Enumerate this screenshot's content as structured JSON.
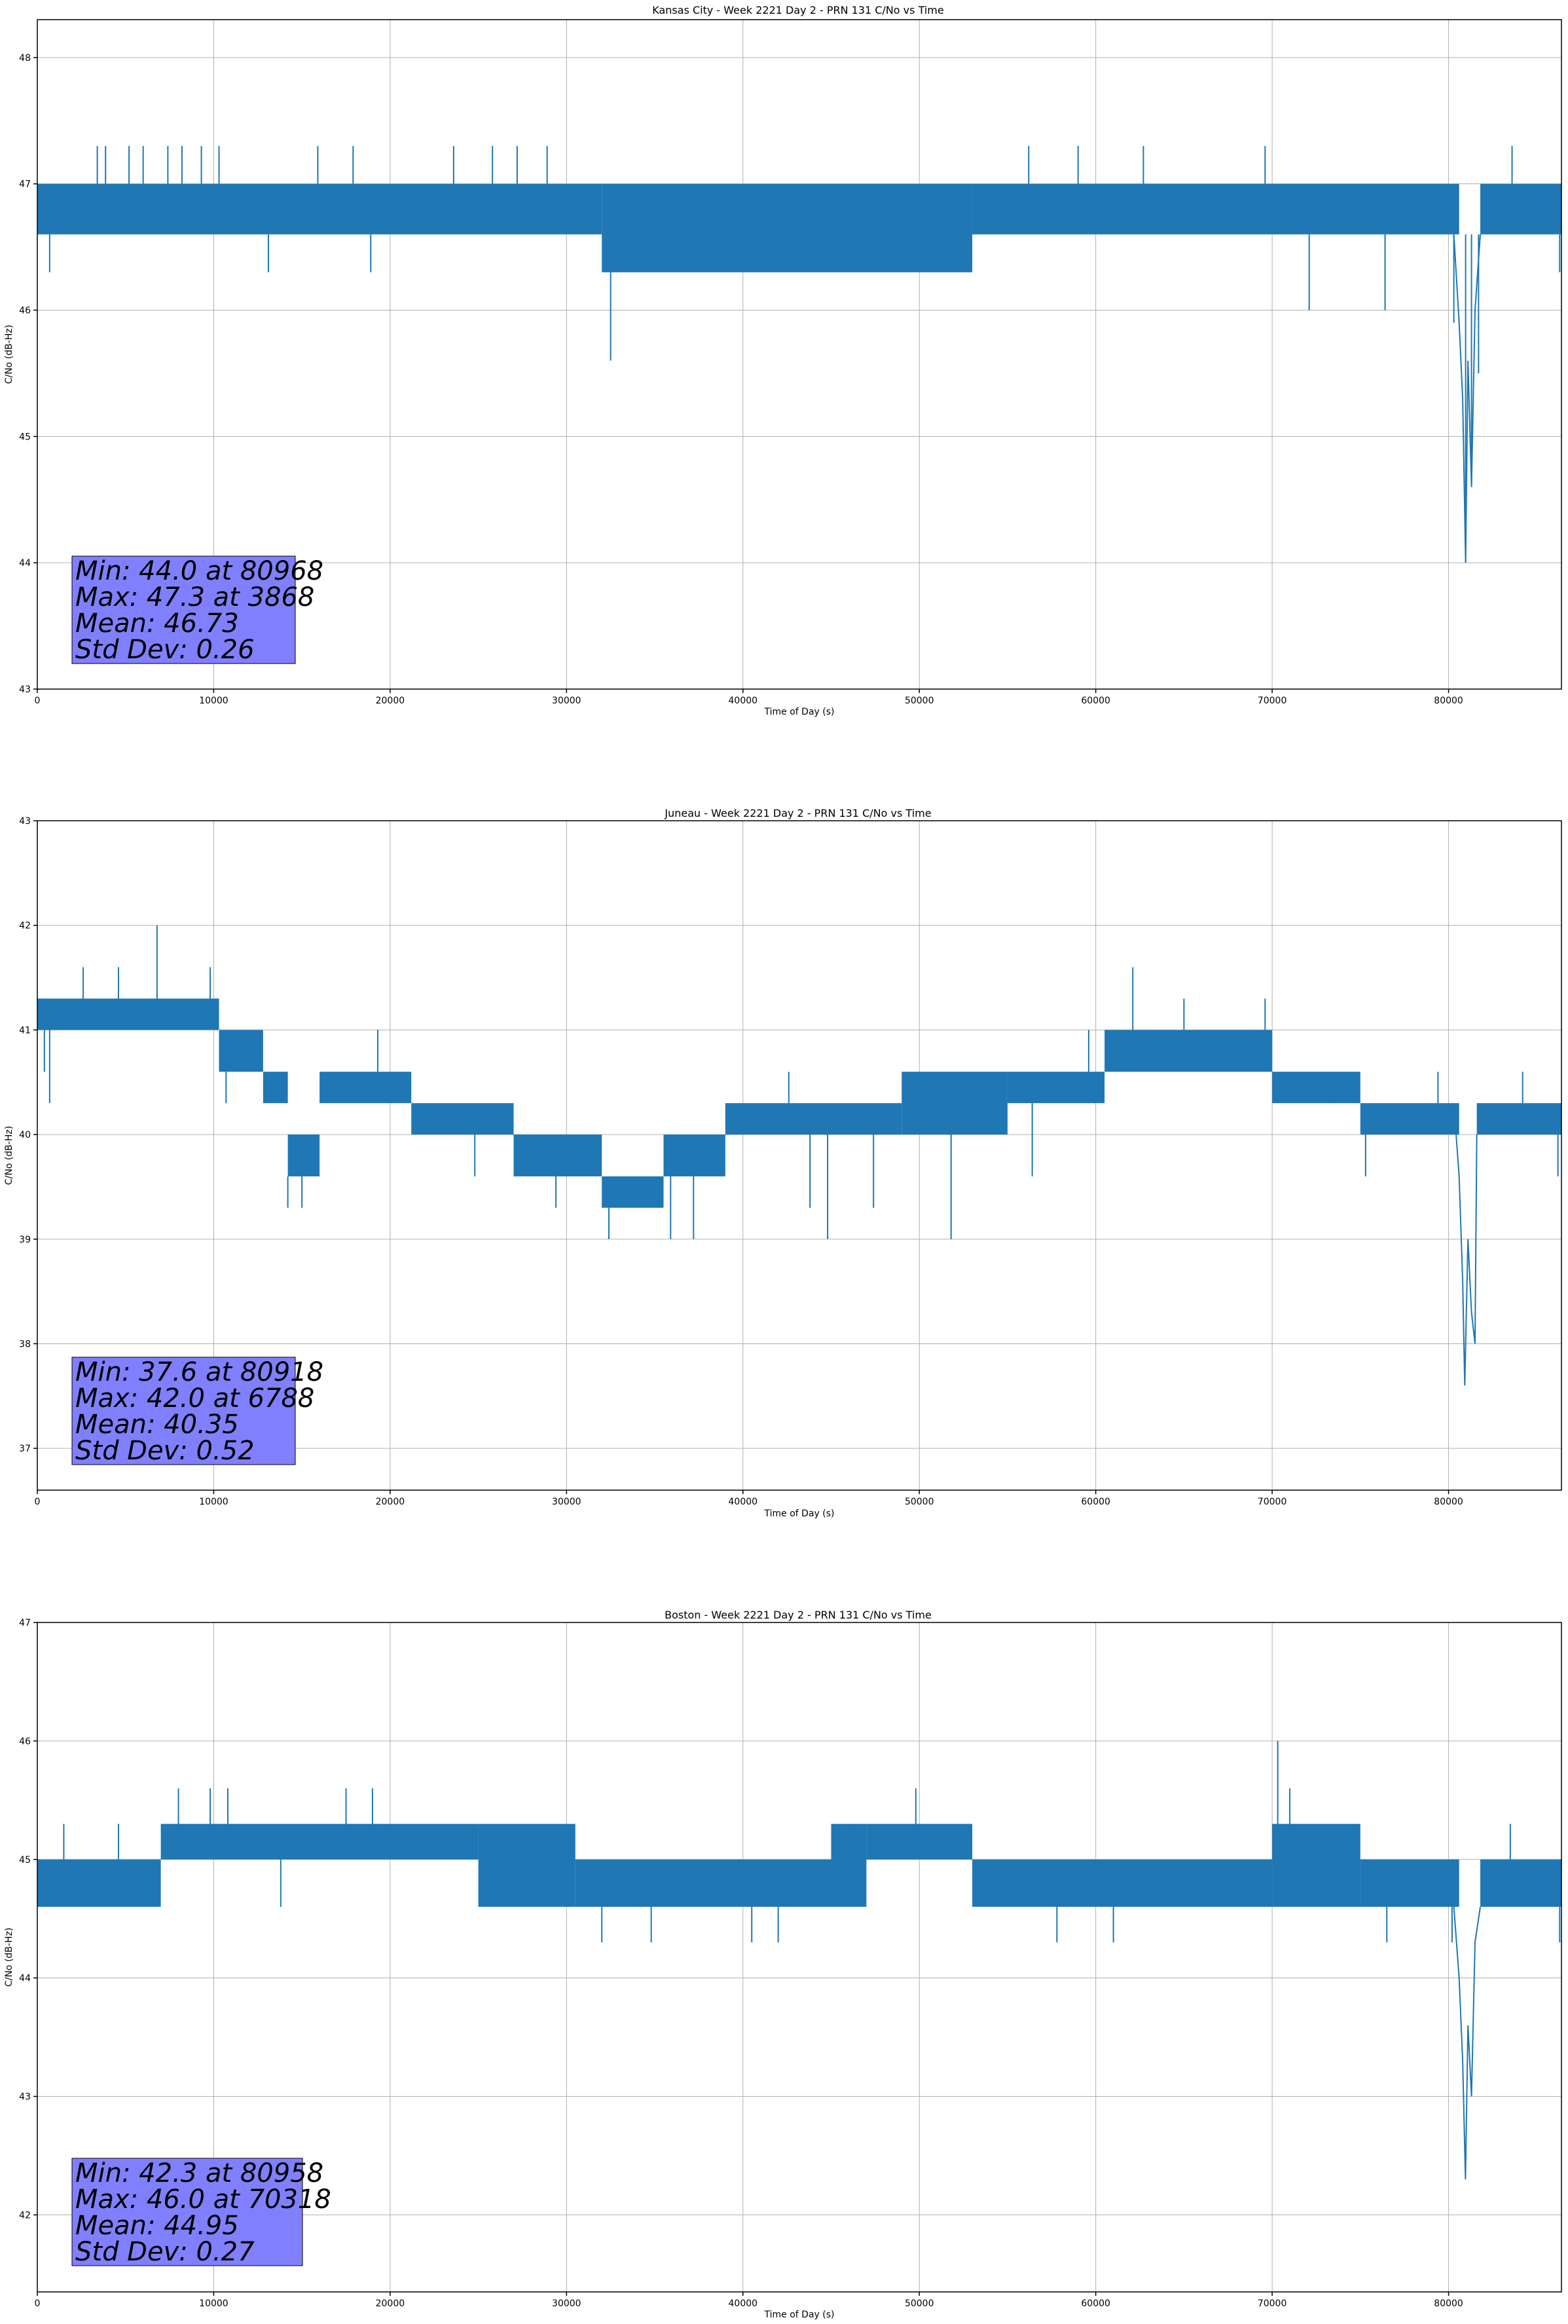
{
  "chart_data": [
    {
      "type": "line",
      "title": "Kansas City - Week 2221 Day 2 - PRN 131 C/No vs Time",
      "xlabel": "Time of Day (s)",
      "ylabel": "C/No (dB-Hz)",
      "xlim": [
        0,
        86400
      ],
      "ylim": [
        43,
        48.3
      ],
      "xticks": [
        0,
        10000,
        20000,
        30000,
        40000,
        50000,
        60000,
        70000,
        80000
      ],
      "yticks": [
        43,
        44,
        45,
        46,
        47,
        48
      ],
      "grid": true,
      "line_color": "#1f77b4",
      "band_segments": [
        {
          "x": [
            0,
            32000
          ],
          "low": 46.6,
          "high": 47.0
        },
        {
          "x": [
            32000,
            53000
          ],
          "low": 46.3,
          "high": 47.0
        },
        {
          "x": [
            53000,
            80600
          ],
          "low": 46.6,
          "high": 47.0
        },
        {
          "x": [
            81800,
            86400
          ],
          "low": 46.6,
          "high": 47.0
        }
      ],
      "spikes": [
        {
          "x": 700,
          "y": 46.3
        },
        {
          "x": 3400,
          "y": 47.3
        },
        {
          "x": 3868,
          "y": 47.3
        },
        {
          "x": 5200,
          "y": 47.3
        },
        {
          "x": 6000,
          "y": 47.3
        },
        {
          "x": 7400,
          "y": 47.3
        },
        {
          "x": 8200,
          "y": 47.3
        },
        {
          "x": 9300,
          "y": 47.3
        },
        {
          "x": 10300,
          "y": 47.3
        },
        {
          "x": 13100,
          "y": 46.3
        },
        {
          "x": 15900,
          "y": 47.3
        },
        {
          "x": 17900,
          "y": 47.3
        },
        {
          "x": 18900,
          "y": 46.3
        },
        {
          "x": 23600,
          "y": 47.3
        },
        {
          "x": 25800,
          "y": 47.3
        },
        {
          "x": 27200,
          "y": 47.3
        },
        {
          "x": 28900,
          "y": 47.3
        },
        {
          "x": 32500,
          "y": 45.6
        },
        {
          "x": 44900,
          "y": 46.3
        },
        {
          "x": 51100,
          "y": 46.3
        },
        {
          "x": 56200,
          "y": 47.3
        },
        {
          "x": 59000,
          "y": 47.3
        },
        {
          "x": 62700,
          "y": 47.3
        },
        {
          "x": 69600,
          "y": 47.3
        },
        {
          "x": 72100,
          "y": 46.0
        },
        {
          "x": 76400,
          "y": 46.0
        },
        {
          "x": 80300,
          "y": 45.9
        },
        {
          "x": 80968,
          "y": 44.0
        },
        {
          "x": 81300,
          "y": 44.6
        },
        {
          "x": 81700,
          "y": 45.5
        },
        {
          "x": 83600,
          "y": 47.3
        },
        {
          "x": 86300,
          "y": 46.3
        }
      ],
      "dip": [
        {
          "x": 80300,
          "y": 46.6
        },
        {
          "x": 80600,
          "y": 45.9
        },
        {
          "x": 80800,
          "y": 45.3
        },
        {
          "x": 80968,
          "y": 44.0
        },
        {
          "x": 81100,
          "y": 45.6
        },
        {
          "x": 81300,
          "y": 44.6
        },
        {
          "x": 81500,
          "y": 46.0
        },
        {
          "x": 81800,
          "y": 46.6
        }
      ],
      "stats": [
        "Min: 44.0 at 80968",
        "Max: 47.3 at 3868",
        "Mean: 46.73",
        "Std Dev: 0.26"
      ],
      "stats_box_color": "#8080ff"
    },
    {
      "type": "line",
      "title": "Juneau - Week 2221 Day 2 - PRN 131 C/No vs Time",
      "xlabel": "Time of Day (s)",
      "ylabel": "C/No (dB-Hz)",
      "xlim": [
        0,
        86400
      ],
      "ylim": [
        36.6,
        43
      ],
      "xticks": [
        0,
        10000,
        20000,
        30000,
        40000,
        50000,
        60000,
        70000,
        80000
      ],
      "yticks": [
        37,
        38,
        39,
        40,
        41,
        42,
        43
      ],
      "grid": true,
      "line_color": "#1f77b4",
      "band_segments": [
        {
          "x": [
            0,
            10300
          ],
          "low": 41.0,
          "high": 41.3
        },
        {
          "x": [
            10300,
            12800
          ],
          "low": 40.6,
          "high": 41.0
        },
        {
          "x": [
            12800,
            14200
          ],
          "low": 40.3,
          "high": 40.6
        },
        {
          "x": [
            14200,
            16000
          ],
          "low": 39.6,
          "high": 40.0
        },
        {
          "x": [
            16000,
            21200
          ],
          "low": 40.3,
          "high": 40.6
        },
        {
          "x": [
            21200,
            27000
          ],
          "low": 40.0,
          "high": 40.3
        },
        {
          "x": [
            27000,
            32000
          ],
          "low": 39.6,
          "high": 40.0
        },
        {
          "x": [
            32000,
            35500
          ],
          "low": 39.3,
          "high": 39.6
        },
        {
          "x": [
            35500,
            39000
          ],
          "low": 39.6,
          "high": 40.0
        },
        {
          "x": [
            39000,
            49000
          ],
          "low": 40.0,
          "high": 40.3
        },
        {
          "x": [
            49000,
            55000
          ],
          "low": 40.0,
          "high": 40.6
        },
        {
          "x": [
            55000,
            60500
          ],
          "low": 40.3,
          "high": 40.6
        },
        {
          "x": [
            60500,
            70000
          ],
          "low": 40.6,
          "high": 41.0
        },
        {
          "x": [
            70000,
            75000
          ],
          "low": 40.3,
          "high": 40.6
        },
        {
          "x": [
            75000,
            80600
          ],
          "low": 40.0,
          "high": 40.3
        },
        {
          "x": [
            81600,
            86400
          ],
          "low": 40.0,
          "high": 40.3
        }
      ],
      "spikes": [
        {
          "x": 400,
          "y": 40.6
        },
        {
          "x": 700,
          "y": 40.3
        },
        {
          "x": 2600,
          "y": 41.6
        },
        {
          "x": 4600,
          "y": 41.6
        },
        {
          "x": 6788,
          "y": 42.0
        },
        {
          "x": 9800,
          "y": 41.6
        },
        {
          "x": 10700,
          "y": 40.3
        },
        {
          "x": 14200,
          "y": 39.3
        },
        {
          "x": 15000,
          "y": 39.3
        },
        {
          "x": 19300,
          "y": 41.0
        },
        {
          "x": 24800,
          "y": 39.6
        },
        {
          "x": 29400,
          "y": 39.3
        },
        {
          "x": 32400,
          "y": 39.0
        },
        {
          "x": 35900,
          "y": 39.0
        },
        {
          "x": 37200,
          "y": 39.0
        },
        {
          "x": 42600,
          "y": 40.6
        },
        {
          "x": 43800,
          "y": 39.3
        },
        {
          "x": 44800,
          "y": 39.0
        },
        {
          "x": 47400,
          "y": 39.3
        },
        {
          "x": 51800,
          "y": 39.0
        },
        {
          "x": 56400,
          "y": 39.6
        },
        {
          "x": 59600,
          "y": 41.0
        },
        {
          "x": 62100,
          "y": 41.6
        },
        {
          "x": 65000,
          "y": 41.3
        },
        {
          "x": 69600,
          "y": 41.3
        },
        {
          "x": 73300,
          "y": 40.6
        },
        {
          "x": 75300,
          "y": 39.6
        },
        {
          "x": 79400,
          "y": 40.6
        },
        {
          "x": 84200,
          "y": 40.6
        },
        {
          "x": 86200,
          "y": 39.6
        }
      ],
      "dip": [
        {
          "x": 80300,
          "y": 40.3
        },
        {
          "x": 80600,
          "y": 39.6
        },
        {
          "x": 80800,
          "y": 38.6
        },
        {
          "x": 80918,
          "y": 37.6
        },
        {
          "x": 81100,
          "y": 39.0
        },
        {
          "x": 81300,
          "y": 38.3
        },
        {
          "x": 81500,
          "y": 38.0
        },
        {
          "x": 81600,
          "y": 40.0
        }
      ],
      "stats": [
        "Min: 37.6 at 80918",
        "Max: 42.0 at 6788",
        "Mean: 40.35",
        "Std Dev: 0.52"
      ],
      "stats_box_color": "#8080ff"
    },
    {
      "type": "line",
      "title": "Boston - Week 2221 Day 2 - PRN 131 C/No vs Time",
      "xlabel": "Time of Day (s)",
      "ylabel": "C/No (dB-Hz)",
      "xlim": [
        0,
        86400
      ],
      "ylim": [
        41.35,
        47
      ],
      "xticks": [
        0,
        10000,
        20000,
        30000,
        40000,
        50000,
        60000,
        70000,
        80000
      ],
      "yticks": [
        42,
        43,
        44,
        45,
        46,
        47
      ],
      "grid": true,
      "line_color": "#1f77b4",
      "band_segments": [
        {
          "x": [
            0,
            7000
          ],
          "low": 44.6,
          "high": 45.0
        },
        {
          "x": [
            7000,
            25000
          ],
          "low": 45.0,
          "high": 45.3
        },
        {
          "x": [
            25000,
            30500
          ],
          "low": 44.6,
          "high": 45.3
        },
        {
          "x": [
            30500,
            45000
          ],
          "low": 44.6,
          "high": 45.0
        },
        {
          "x": [
            45000,
            47000
          ],
          "low": 44.6,
          "high": 45.3
        },
        {
          "x": [
            47000,
            53000
          ],
          "low": 45.0,
          "high": 45.3
        },
        {
          "x": [
            53000,
            70000
          ],
          "low": 44.6,
          "high": 45.0
        },
        {
          "x": [
            70000,
            75000
          ],
          "low": 44.6,
          "high": 45.3
        },
        {
          "x": [
            75000,
            80600
          ],
          "low": 44.6,
          "high": 45.0
        },
        {
          "x": [
            81800,
            86400
          ],
          "low": 44.6,
          "high": 45.0
        }
      ],
      "spikes": [
        {
          "x": 1500,
          "y": 45.3
        },
        {
          "x": 4600,
          "y": 45.3
        },
        {
          "x": 8000,
          "y": 45.6
        },
        {
          "x": 9800,
          "y": 45.6
        },
        {
          "x": 10800,
          "y": 45.6
        },
        {
          "x": 13800,
          "y": 44.6
        },
        {
          "x": 17500,
          "y": 45.6
        },
        {
          "x": 19000,
          "y": 45.6
        },
        {
          "x": 26300,
          "y": 44.6
        },
        {
          "x": 30100,
          "y": 45.3
        },
        {
          "x": 32000,
          "y": 44.3
        },
        {
          "x": 34800,
          "y": 44.3
        },
        {
          "x": 40500,
          "y": 44.3
        },
        {
          "x": 42000,
          "y": 44.3
        },
        {
          "x": 46000,
          "y": 45.3
        },
        {
          "x": 49800,
          "y": 45.6
        },
        {
          "x": 57800,
          "y": 44.3
        },
        {
          "x": 61000,
          "y": 44.3
        },
        {
          "x": 70318,
          "y": 46.0
        },
        {
          "x": 71000,
          "y": 45.6
        },
        {
          "x": 76500,
          "y": 44.3
        },
        {
          "x": 80200,
          "y": 44.3
        },
        {
          "x": 83500,
          "y": 45.3
        },
        {
          "x": 86300,
          "y": 44.3
        }
      ],
      "dip": [
        {
          "x": 80300,
          "y": 44.6
        },
        {
          "x": 80600,
          "y": 44.0
        },
        {
          "x": 80800,
          "y": 43.3
        },
        {
          "x": 80958,
          "y": 42.3
        },
        {
          "x": 81100,
          "y": 43.6
        },
        {
          "x": 81300,
          "y": 43.0
        },
        {
          "x": 81500,
          "y": 44.3
        },
        {
          "x": 81800,
          "y": 44.6
        }
      ],
      "stats": [
        "Min: 42.3 at 80958",
        "Max: 46.0 at 70318",
        "Mean: 44.95",
        "Std Dev: 0.27"
      ],
      "stats_box_color": "#8080ff"
    }
  ]
}
